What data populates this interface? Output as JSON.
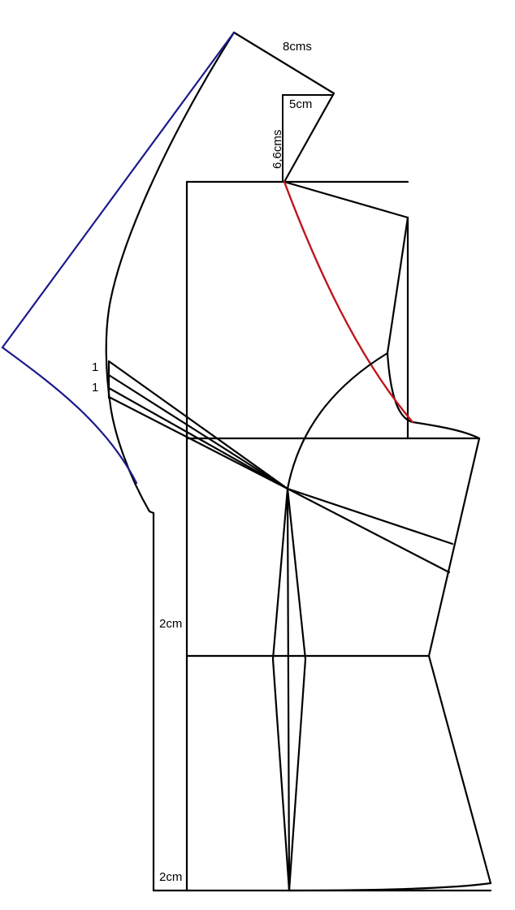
{
  "diagram": {
    "labels": {
      "top_width": "8cms",
      "small_width": "5cm",
      "small_height": "6,6cms",
      "mark_upper": "1",
      "mark_lower": "1",
      "side_upper": "2cm",
      "side_lower": "2cm"
    },
    "colors": {
      "outline": "#000000",
      "blue_curve": "#1a1a8c",
      "red_curve": "#c0141c",
      "background": "#ffffff"
    }
  }
}
